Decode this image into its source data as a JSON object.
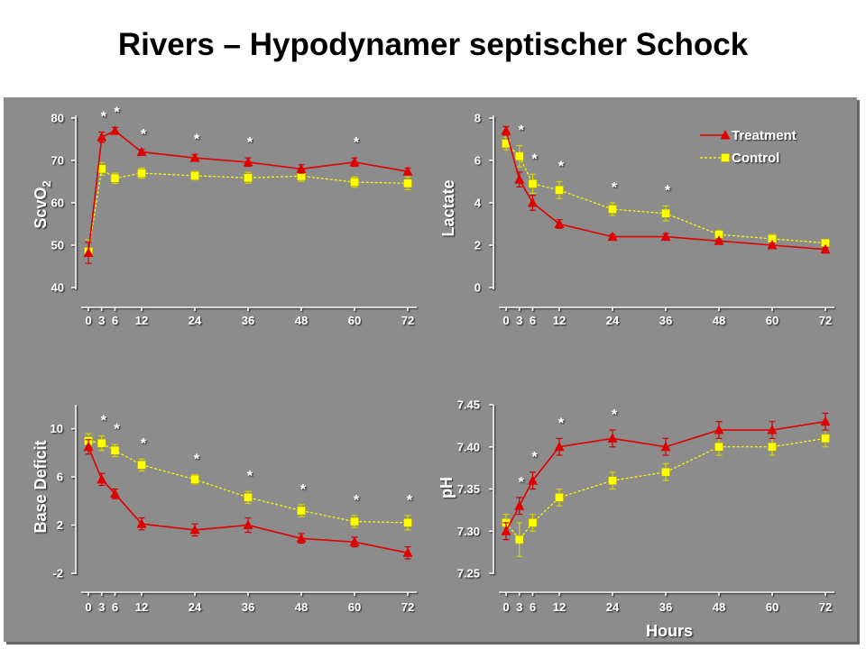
{
  "title": "Rivers – Hypodynamer septischer Schock",
  "colors": {
    "panel_background": "#8c8c8c",
    "axis_text": "#ffffff",
    "title_text": "#000000"
  },
  "chart_data": [
    {
      "type": "line",
      "ylabel": "ScvO",
      "ylabel_subscript": "2",
      "x": [
        0,
        3,
        6,
        12,
        24,
        36,
        48,
        60,
        72
      ],
      "xticks": [
        0,
        3,
        6,
        12,
        24,
        36,
        48,
        60,
        72
      ],
      "xlim": [
        0,
        72
      ],
      "yticks": [
        "40",
        "50",
        "60",
        "70",
        "80"
      ],
      "ylim": [
        40,
        80
      ],
      "grid": false,
      "series": [
        {
          "marker": "triangle",
          "line_style": "solid",
          "color": "#e00000",
          "values": [
            48.2,
            75.5,
            77.0,
            72.0,
            70.6,
            69.6,
            68.0,
            69.6,
            67.4
          ],
          "errors": [
            2.5,
            1.2,
            0.8,
            0.6,
            0.8,
            1.0,
            1.0,
            1.0,
            0.8
          ]
        },
        {
          "marker": "square",
          "line_style": "dashed",
          "color": "#ffff00",
          "values": [
            48.5,
            68.0,
            65.8,
            67.0,
            66.4,
            65.9,
            66.3,
            64.9,
            64.6
          ],
          "errors": [
            2.8,
            1.5,
            1.2,
            1.2,
            1.0,
            1.3,
            1.2,
            1.2,
            1.5
          ]
        }
      ],
      "significance_marker": "*",
      "significant_at": [
        3,
        6,
        12,
        24,
        36,
        60
      ]
    },
    {
      "type": "line",
      "ylabel": "Lactate",
      "x": [
        0,
        3,
        6,
        12,
        24,
        36,
        48,
        60,
        72
      ],
      "xticks": [
        0,
        3,
        6,
        12,
        24,
        36,
        48,
        60,
        72
      ],
      "xlim": [
        0,
        72
      ],
      "yticks": [
        "0",
        "2",
        "4",
        "6",
        "8"
      ],
      "ylim": [
        0,
        8
      ],
      "grid": false,
      "legend": "top-right",
      "series": [
        {
          "name": "Treatment",
          "marker": "triangle",
          "line_style": "solid",
          "color": "#e00000",
          "values": [
            7.4,
            5.1,
            4.0,
            3.0,
            2.4,
            2.4,
            2.2,
            2.0,
            1.8
          ],
          "errors": [
            0.2,
            0.35,
            0.35,
            0.2,
            0.1,
            0.15,
            0.1,
            0.1,
            0.1
          ]
        },
        {
          "name": "Control",
          "marker": "square",
          "line_style": "dashed",
          "color": "#ffff00",
          "values": [
            6.8,
            6.2,
            4.9,
            4.6,
            3.7,
            3.5,
            2.5,
            2.3,
            2.1
          ],
          "errors": [
            0.3,
            0.5,
            0.45,
            0.4,
            0.3,
            0.35,
            0.2,
            0.2,
            0.15
          ]
        }
      ],
      "significance_marker": "*",
      "significant_at": [
        3,
        6,
        12,
        24,
        36
      ]
    },
    {
      "type": "line",
      "ylabel": "Base Deficit",
      "x": [
        0,
        3,
        6,
        12,
        24,
        36,
        48,
        60,
        72
      ],
      "xticks": [
        0,
        3,
        6,
        12,
        24,
        36,
        48,
        60,
        72
      ],
      "xlim": [
        0,
        72
      ],
      "yticks": [
        "-2",
        "2",
        "6",
        "10"
      ],
      "ylim": [
        -2,
        12
      ],
      "grid": false,
      "series": [
        {
          "marker": "triangle",
          "line_style": "solid",
          "color": "#e00000",
          "values": [
            8.5,
            5.8,
            4.6,
            2.1,
            1.6,
            2.0,
            0.9,
            0.6,
            -0.3
          ],
          "errors": [
            0.6,
            0.5,
            0.4,
            0.5,
            0.5,
            0.6,
            0.4,
            0.4,
            0.5
          ]
        },
        {
          "marker": "square",
          "line_style": "dashed",
          "color": "#ffff00",
          "values": [
            9.0,
            8.8,
            8.2,
            7.0,
            5.8,
            4.3,
            3.2,
            2.3,
            2.2
          ],
          "errors": [
            0.6,
            0.6,
            0.5,
            0.5,
            0.4,
            0.5,
            0.5,
            0.5,
            0.6
          ]
        }
      ],
      "significance_marker": "*",
      "significant_at": [
        3,
        6,
        12,
        24,
        36,
        48,
        60,
        72
      ]
    },
    {
      "type": "line",
      "ylabel": "pH",
      "xlabel": "Hours",
      "x": [
        0,
        3,
        6,
        12,
        24,
        36,
        48,
        60,
        72
      ],
      "xticks": [
        0,
        3,
        6,
        12,
        24,
        36,
        48,
        60,
        72
      ],
      "xlim": [
        0,
        72
      ],
      "yticks": [
        "7.25",
        "7.30",
        "7.35",
        "7.40",
        "7.45"
      ],
      "ylim": [
        7.25,
        7.45
      ],
      "grid": false,
      "series": [
        {
          "marker": "triangle",
          "line_style": "solid",
          "color": "#e00000",
          "values": [
            7.3,
            7.33,
            7.36,
            7.4,
            7.41,
            7.4,
            7.42,
            7.42,
            7.43
          ],
          "errors": [
            0.01,
            0.01,
            0.01,
            0.01,
            0.01,
            0.01,
            0.01,
            0.01,
            0.01
          ]
        },
        {
          "marker": "square",
          "line_style": "dashed",
          "color": "#ffff00",
          "values": [
            7.31,
            7.29,
            7.31,
            7.34,
            7.36,
            7.37,
            7.4,
            7.4,
            7.41
          ],
          "errors": [
            0.01,
            0.02,
            0.01,
            0.01,
            0.01,
            0.01,
            0.01,
            0.01,
            0.01
          ]
        }
      ],
      "significance_marker": "*",
      "significant_at": [
        3,
        6,
        12,
        24
      ]
    }
  ]
}
